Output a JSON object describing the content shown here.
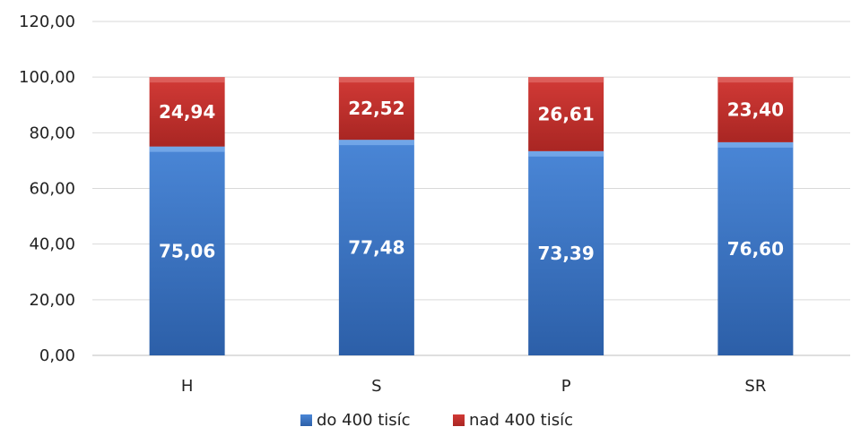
{
  "chart_data": {
    "type": "bar",
    "stacked": true,
    "categories": [
      "H",
      "S",
      "P",
      "SR"
    ],
    "series": [
      {
        "name": "do 400 tisíc",
        "values": [
          75.06,
          77.48,
          73.39,
          76.6
        ],
        "labels": [
          "75,06",
          "77,48",
          "73,39",
          "76,60"
        ],
        "color": "#3b74c4"
      },
      {
        "name": "nad 400 tisíc",
        "values": [
          24.94,
          22.52,
          26.61,
          23.4
        ],
        "labels": [
          "24,94",
          "22,52",
          "26,61",
          "23,40"
        ],
        "color": "#c0302d"
      }
    ],
    "ylim": [
      0,
      120
    ],
    "yticks": [
      0,
      20,
      40,
      60,
      80,
      100,
      120
    ],
    "ytick_labels": [
      "0,00",
      "20,00",
      "40,00",
      "60,00",
      "80,00",
      "100,00",
      "120,00"
    ],
    "grid": true,
    "legend_position": "bottom",
    "title": "",
    "xlabel": "",
    "ylabel": ""
  }
}
